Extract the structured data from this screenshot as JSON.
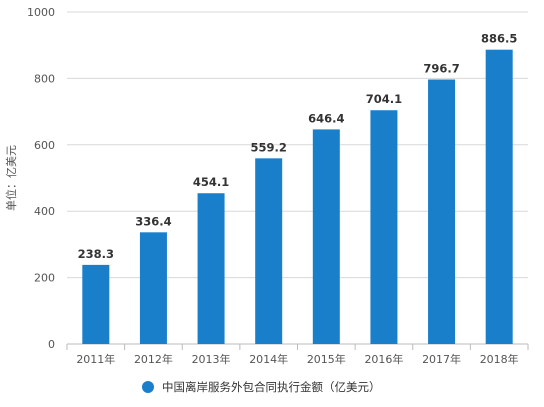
{
  "chart_data": {
    "type": "bar",
    "categories": [
      "2011年",
      "2012年",
      "2013年",
      "2014年",
      "2015年",
      "2016年",
      "2017年",
      "2018年"
    ],
    "series": [
      {
        "name": "中国离岸服务外包合同执行金额（亿美元）",
        "values": [
          238.3,
          336.4,
          454.1,
          559.2,
          646.4,
          704.1,
          796.7,
          886.5
        ],
        "data_labels": [
          "238.3",
          "336.4",
          "454.1",
          "559.2",
          "646.4",
          "704.1",
          "796.7",
          "886.5"
        ],
        "color": "#1a7fcb"
      }
    ],
    "ylabel": "单位：亿美元",
    "xlabel": "",
    "ylim": [
      0,
      1000
    ],
    "yticks": [
      "0",
      "200",
      "400",
      "600",
      "800",
      "1000"
    ],
    "grid": true,
    "legend_position": "bottom"
  },
  "colors": {
    "bar": "#1a7fcb",
    "grid": "#d8d8d8"
  }
}
